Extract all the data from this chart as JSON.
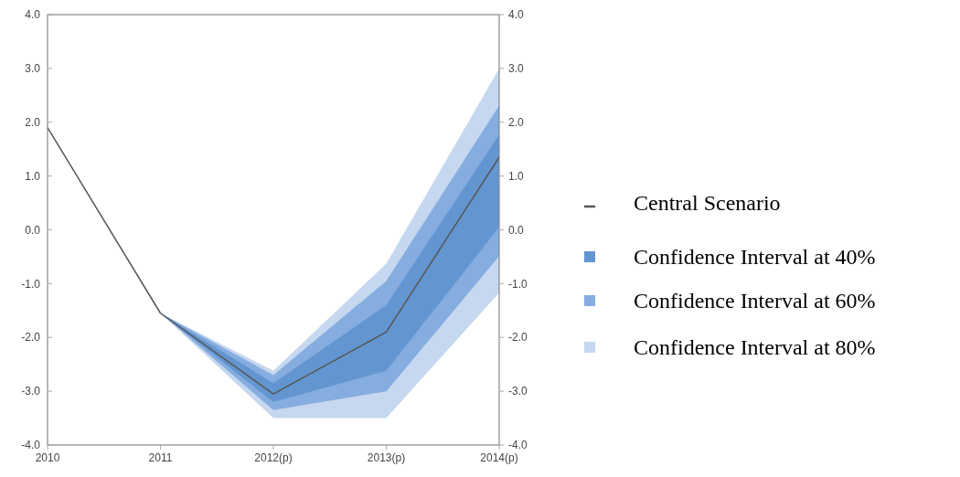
{
  "chart_data": {
    "type": "line",
    "categories": [
      "2010",
      "2011",
      "2012(p)",
      "2013(p)",
      "2014(p)"
    ],
    "series": [
      {
        "name": "Central Scenario",
        "color": "#555555",
        "values": [
          1.9,
          -1.55,
          -3.05,
          -1.9,
          1.35
        ]
      },
      {
        "name": "Confidence Interval at 40%",
        "color": "#6396d0",
        "values": [
          null,
          null,
          null,
          null,
          null
        ],
        "lower": [
          null,
          -1.55,
          -3.2,
          -2.62,
          0.05
        ],
        "upper": [
          null,
          -1.55,
          -2.85,
          -1.4,
          1.77
        ]
      },
      {
        "name": "Confidence Interval at 60%",
        "color": "#86ade0",
        "values": [
          null,
          null,
          null,
          null,
          null
        ],
        "lower": [
          null,
          -1.55,
          -3.35,
          -3.0,
          -0.49
        ],
        "upper": [
          null,
          -1.55,
          -2.7,
          -0.95,
          2.31
        ]
      },
      {
        "name": "Confidence Interval at 80%",
        "color": "#c6d8ef",
        "values": [
          null,
          null,
          null,
          null,
          null
        ],
        "lower": [
          null,
          -1.55,
          -3.5,
          -3.5,
          -1.17
        ],
        "upper": [
          null,
          -1.55,
          -2.62,
          -0.63,
          3.0
        ]
      }
    ],
    "ylim": [
      -4,
      4
    ],
    "yticks": [
      {
        "value": -4,
        "label": "-4.0"
      },
      {
        "value": -3,
        "label": "-3.0"
      },
      {
        "value": -2,
        "label": "-2.0"
      },
      {
        "value": -1,
        "label": "-1.0"
      },
      {
        "value": 0,
        "label": "0.0"
      },
      {
        "value": 1,
        "label": "1.0"
      },
      {
        "value": 2,
        "label": "2.0"
      },
      {
        "value": 3,
        "label": "3.0"
      },
      {
        "value": 4,
        "label": "4.0"
      }
    ],
    "y2lim": [
      -4,
      4
    ],
    "y2ticks": [
      {
        "value": -4,
        "label": "-4.0"
      },
      {
        "value": -3,
        "label": "-3.0"
      },
      {
        "value": -2,
        "label": "-2.0"
      },
      {
        "value": -1,
        "label": "-1.0"
      },
      {
        "value": 0,
        "label": "0.0"
      },
      {
        "value": 1,
        "label": "1.0"
      },
      {
        "value": 2,
        "label": "2.0"
      },
      {
        "value": 3,
        "label": "3.0"
      },
      {
        "value": 4,
        "label": "4.0"
      }
    ],
    "legend": "right",
    "marker": "none",
    "line_style": "solid"
  }
}
